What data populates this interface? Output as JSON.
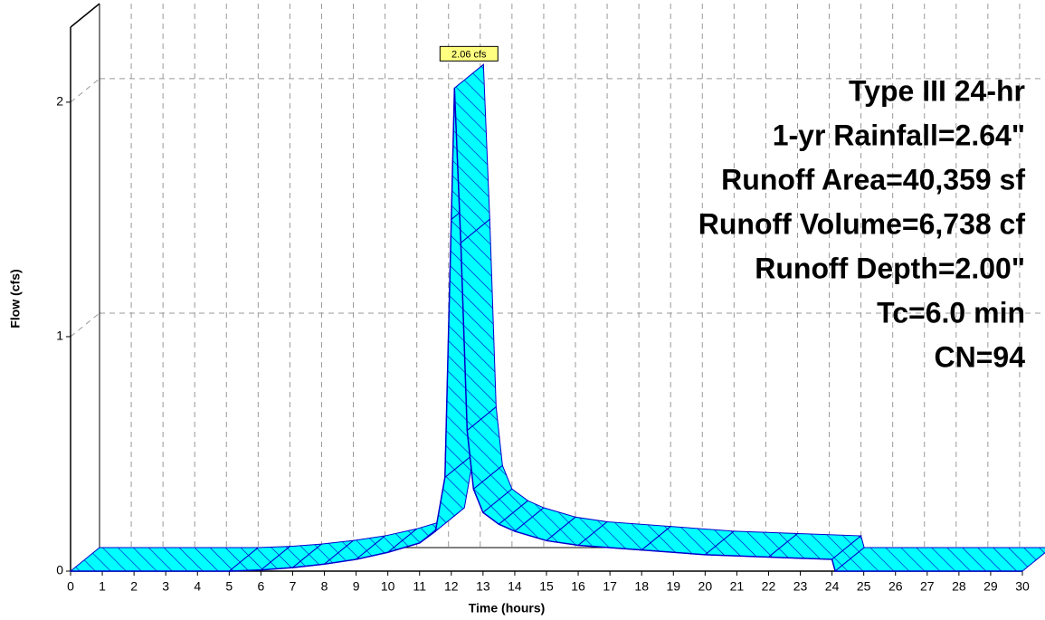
{
  "chart_data": {
    "type": "ribbon",
    "x_label": "Time  (hours)",
    "y_label": "Flow  (cfs)",
    "x": [
      0,
      5,
      6,
      7,
      8,
      9,
      10,
      11,
      11.5,
      11.8,
      12.0,
      12.1,
      12.3,
      12.5,
      12.7,
      13,
      13.5,
      14,
      15,
      16,
      18,
      20,
      22,
      24,
      24.1,
      30
    ],
    "values": [
      0,
      0,
      0.005,
      0.015,
      0.03,
      0.05,
      0.08,
      0.12,
      0.17,
      0.4,
      1.5,
      2.06,
      1.4,
      0.6,
      0.35,
      0.25,
      0.2,
      0.17,
      0.13,
      0.11,
      0.09,
      0.07,
      0.06,
      0.05,
      0,
      0
    ],
    "peak_label": "2.06 cfs",
    "annotations": [
      "Type III 24-hr",
      "1-yr Rainfall=2.64\"",
      "Runoff Area=40,359 sf",
      "Runoff Volume=6,738 cf",
      "Runoff Depth=2.00\"",
      "Tc=6.0 min",
      "CN=94"
    ],
    "color": "#00ffff",
    "edge_color": "#0000cc",
    "xlim": [
      0,
      30
    ],
    "xticks": [
      0,
      1,
      2,
      3,
      4,
      5,
      6,
      7,
      8,
      9,
      10,
      11,
      12,
      13,
      14,
      15,
      16,
      17,
      18,
      19,
      20,
      21,
      22,
      23,
      24,
      25,
      26,
      27,
      28,
      29,
      30
    ],
    "ylim": [
      0,
      2.32
    ],
    "yticks": [
      0,
      1,
      2
    ],
    "grid": true
  }
}
